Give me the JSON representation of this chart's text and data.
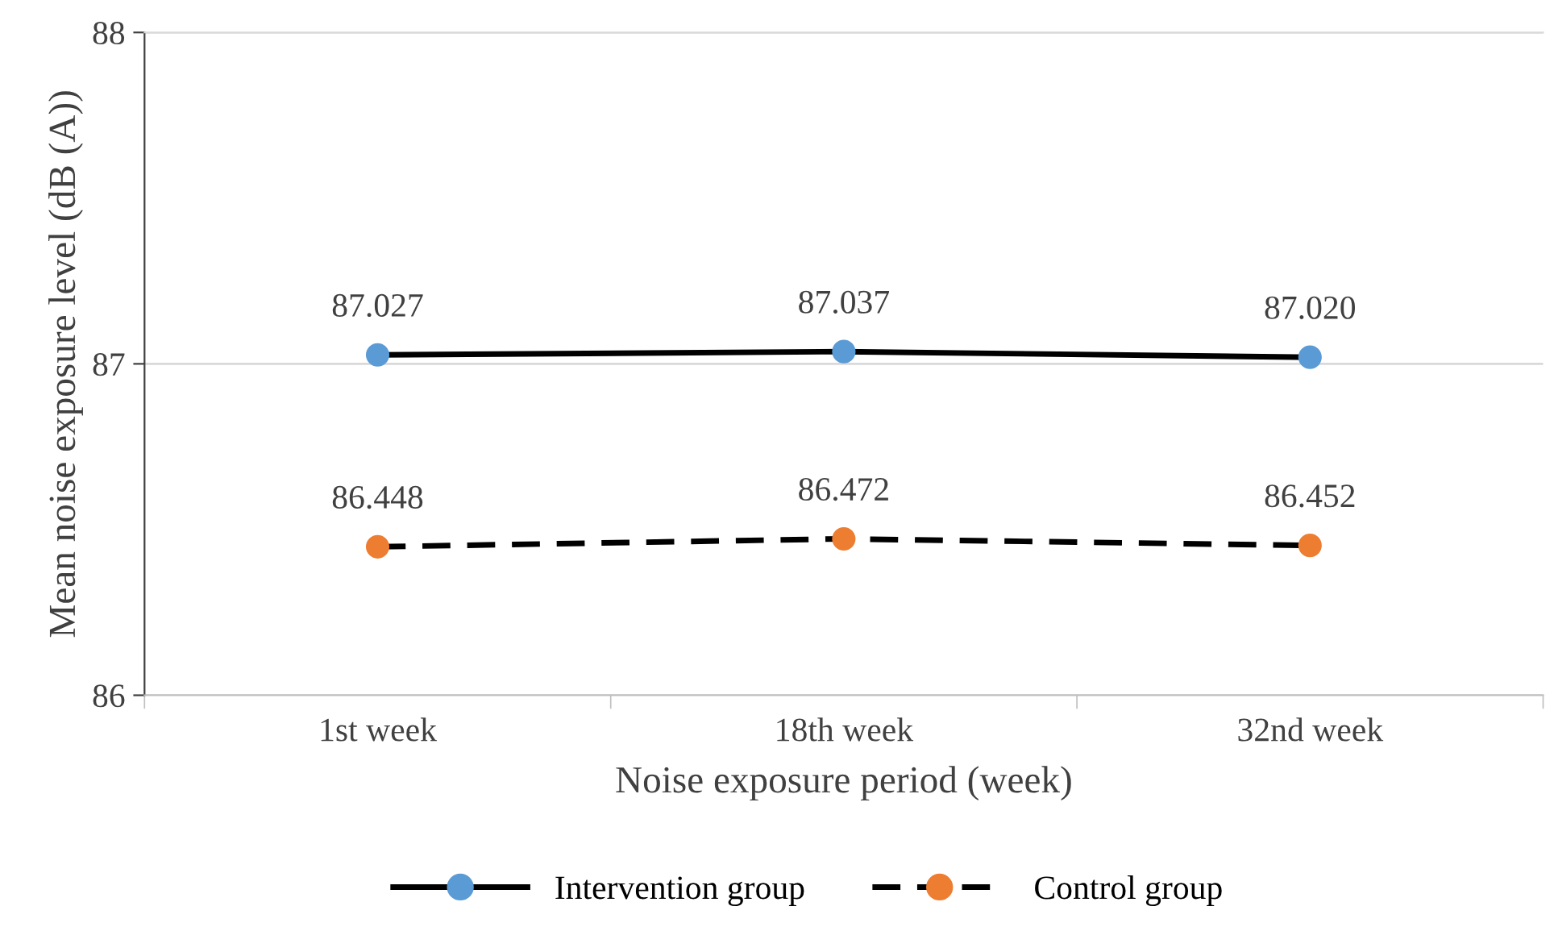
{
  "chart_data": {
    "type": "line",
    "xlabel": "Noise exposure period (week)",
    "ylabel": "Mean noise exposure level (dB (A))",
    "categories": [
      "1st week",
      "18th week",
      "32nd week"
    ],
    "series": [
      {
        "name": "Intervention group",
        "color": "#000000",
        "colors": [
          "#5b9bd5",
          "#5b9bd5",
          "#5b9bd5"
        ],
        "line_style": "solid",
        "values": [
          87.027,
          87.037,
          87.02
        ],
        "value_labels": [
          "87.027",
          "87.037",
          "87.020"
        ]
      },
      {
        "name": "Control group",
        "color": "#000000",
        "colors": [
          "#ed7d31",
          "#ed7d31",
          "#ed7d31"
        ],
        "line_style": "dashed",
        "values": [
          86.448,
          86.472,
          86.452
        ],
        "value_labels": [
          "86.448",
          "86.472",
          "86.452"
        ]
      }
    ],
    "ylim": [
      86,
      88
    ],
    "yticks": [
      86,
      87,
      88
    ],
    "grid": "y",
    "legend": "bottom",
    "marker": "circle"
  }
}
